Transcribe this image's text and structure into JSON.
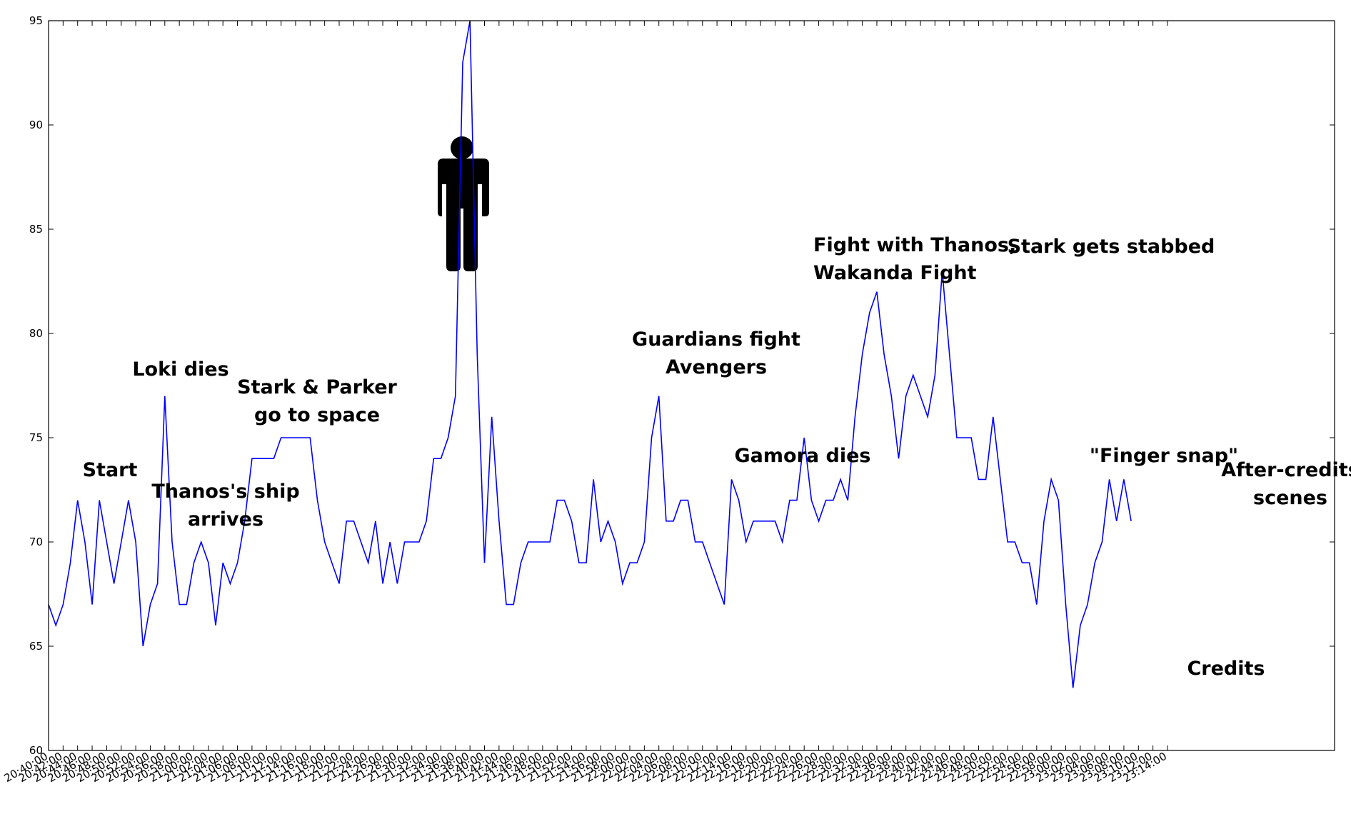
{
  "chart_data": {
    "type": "line",
    "title": "",
    "xlabel": "",
    "ylabel": "",
    "ylim": [
      60,
      95
    ],
    "yticks": [
      60,
      65,
      70,
      75,
      80,
      85,
      90,
      95
    ],
    "grid": false,
    "line_color": "#0000ff",
    "xticks": [
      "20:40:00",
      "20:42:00",
      "20:44:00",
      "20:46:00",
      "20:48:00",
      "20:50:00",
      "20:52:00",
      "20:54:00",
      "20:56:00",
      "20:58:00",
      "21:00:00",
      "21:02:00",
      "21:04:00",
      "21:06:00",
      "21:08:00",
      "21:10:00",
      "21:12:00",
      "21:14:00",
      "21:16:00",
      "21:18:00",
      "21:20:00",
      "21:22:00",
      "21:24:00",
      "21:26:00",
      "21:28:00",
      "21:30:00",
      "21:32:00",
      "21:34:00",
      "21:36:00",
      "21:38:00",
      "21:40:00",
      "21:42:00",
      "21:44:00",
      "21:46:00",
      "21:48:00",
      "21:50:00",
      "21:52:00",
      "21:54:00",
      "21:56:00",
      "21:58:00",
      "22:00:00",
      "22:02:00",
      "22:04:00",
      "22:06:00",
      "22:08:00",
      "22:10:00",
      "22:12:00",
      "22:14:00",
      "22:16:00",
      "22:18:00",
      "22:20:00",
      "22:22:00",
      "22:24:00",
      "22:26:00",
      "22:28:00",
      "22:30:00",
      "22:32:00",
      "22:34:00",
      "22:36:00",
      "22:38:00",
      "22:40:00",
      "22:42:00",
      "22:44:00",
      "22:46:00",
      "22:48:00",
      "22:50:00",
      "22:52:00",
      "22:54:00",
      "22:56:00",
      "22:58:00",
      "23:00:00",
      "23:02:00",
      "23:04:00",
      "23:06:00",
      "23:08:00",
      "23:10:00",
      "23:12:00",
      "23:14:00"
    ],
    "series": [
      {
        "name": "",
        "x": [
          "20:40:00",
          "20:41:00",
          "20:42:00",
          "20:43:00",
          "20:44:00",
          "20:45:00",
          "20:46:00",
          "20:47:00",
          "20:48:00",
          "20:49:00",
          "20:50:00",
          "20:51:00",
          "20:52:00",
          "20:53:00",
          "20:54:00",
          "20:55:00",
          "20:56:00",
          "20:57:00",
          "20:58:00",
          "20:59:00",
          "21:00:00",
          "21:01:00",
          "21:02:00",
          "21:03:00",
          "21:04:00",
          "21:05:00",
          "21:06:00",
          "21:07:00",
          "21:08:00",
          "21:09:00",
          "21:10:00",
          "21:11:00",
          "21:12:00",
          "21:13:00",
          "21:14:00",
          "21:15:00",
          "21:16:00",
          "21:17:00",
          "21:18:00",
          "21:19:00",
          "21:20:00",
          "21:21:00",
          "21:22:00",
          "21:23:00",
          "21:24:00",
          "21:25:00",
          "21:26:00",
          "21:27:00",
          "21:28:00",
          "21:29:00",
          "21:30:00",
          "21:31:00",
          "21:32:00",
          "21:33:00",
          "21:34:00",
          "21:35:00",
          "21:36:00",
          "21:37:00",
          "21:38:00",
          "21:39:00",
          "21:40:00",
          "21:41:00",
          "21:42:00",
          "21:43:00",
          "21:44:00",
          "21:45:00",
          "21:46:00",
          "21:47:00",
          "21:48:00",
          "21:49:00",
          "21:50:00",
          "21:51:00",
          "21:52:00",
          "21:53:00",
          "21:54:00",
          "21:55:00",
          "21:56:00",
          "21:57:00",
          "21:58:00",
          "21:59:00",
          "22:00:00",
          "22:01:00",
          "22:02:00",
          "22:03:00",
          "22:04:00",
          "22:05:00",
          "22:06:00",
          "22:07:00",
          "22:08:00",
          "22:09:00",
          "22:10:00",
          "22:11:00",
          "22:12:00",
          "22:13:00",
          "22:14:00",
          "22:15:00",
          "22:16:00",
          "22:17:00",
          "22:18:00",
          "22:19:00",
          "22:20:00",
          "22:21:00",
          "22:22:00",
          "22:23:00",
          "22:24:00",
          "22:25:00",
          "22:26:00",
          "22:27:00",
          "22:28:00",
          "22:29:00",
          "22:30:00",
          "22:31:00",
          "22:32:00",
          "22:33:00",
          "22:34:00",
          "22:35:00",
          "22:36:00",
          "22:37:00",
          "22:38:00",
          "22:39:00",
          "22:40:00",
          "22:41:00",
          "22:42:00",
          "22:43:00",
          "22:44:00",
          "22:45:00",
          "22:46:00",
          "22:47:00",
          "22:48:00",
          "22:49:00",
          "22:50:00",
          "22:51:00",
          "22:52:00",
          "22:53:00",
          "22:54:00",
          "22:55:00",
          "22:56:00",
          "22:57:00",
          "22:58:00",
          "22:59:00",
          "23:00:00",
          "23:01:00",
          "23:02:00",
          "23:03:00",
          "23:04:00",
          "23:05:00",
          "23:06:00",
          "23:07:00",
          "23:08:00",
          "23:09:00"
        ],
        "values": [
          67,
          66,
          67,
          69,
          72,
          70,
          67,
          72,
          70,
          68,
          70,
          72,
          70,
          65,
          67,
          68,
          77,
          70,
          67,
          67,
          69,
          70,
          69,
          66,
          69,
          68,
          69,
          71,
          74,
          74,
          74,
          74,
          75,
          75,
          75,
          75,
          75,
          72,
          70,
          69,
          68,
          71,
          71,
          70,
          69,
          71,
          68,
          70,
          68,
          70,
          70,
          70,
          71,
          74,
          74,
          75,
          77,
          93,
          95,
          79,
          69,
          76,
          71,
          67,
          67,
          69,
          70,
          70,
          70,
          70,
          72,
          72,
          71,
          69,
          69,
          73,
          70,
          71,
          70,
          68,
          69,
          69,
          70,
          75,
          77,
          71,
          71,
          72,
          72,
          70,
          70,
          69,
          68,
          67,
          73,
          72,
          70,
          71,
          71,
          71,
          71,
          70,
          72,
          72,
          75,
          72,
          71,
          72,
          72,
          73,
          72,
          76,
          79,
          81,
          82,
          79,
          77,
          74,
          77,
          78,
          77,
          76,
          78,
          83,
          79,
          75,
          75,
          75,
          73,
          73,
          76,
          73,
          70,
          70,
          69,
          69,
          67,
          71,
          73,
          72,
          67,
          63,
          66,
          67,
          69,
          70,
          73,
          71,
          73,
          71
        ]
      }
    ],
    "annotations": [
      {
        "lines": [
          "Start"
        ],
        "x": "20:48:00"
      },
      {
        "lines": [
          "Loki dies"
        ],
        "x": "20:56:00"
      },
      {
        "lines": [
          "Thanos's ship",
          "arrives"
        ],
        "x": "21:04:00"
      },
      {
        "lines": [
          "Stark & Parker",
          "go to space"
        ],
        "x": "21:12:00"
      },
      {
        "lines": [
          "Guardians fight",
          "Avengers"
        ],
        "x": "22:01:00"
      },
      {
        "lines": [
          "Gamora dies"
        ],
        "x": "22:12:00"
      },
      {
        "lines": [
          "Fight with Thanos,",
          "Wakanda Fight"
        ],
        "x": "22:29:00"
      },
      {
        "lines": [
          "Stark gets stabbed"
        ],
        "x": "22:42:00"
      },
      {
        "lines": [
          "\"Finger snap\""
        ],
        "x": "22:56:00"
      },
      {
        "lines": [
          "Credits"
        ],
        "x": "23:03:00"
      },
      {
        "lines": [
          "After-credits",
          "scenes"
        ],
        "x": "23:13:00"
      }
    ],
    "figure_icon": "person-silhouette-icon"
  }
}
